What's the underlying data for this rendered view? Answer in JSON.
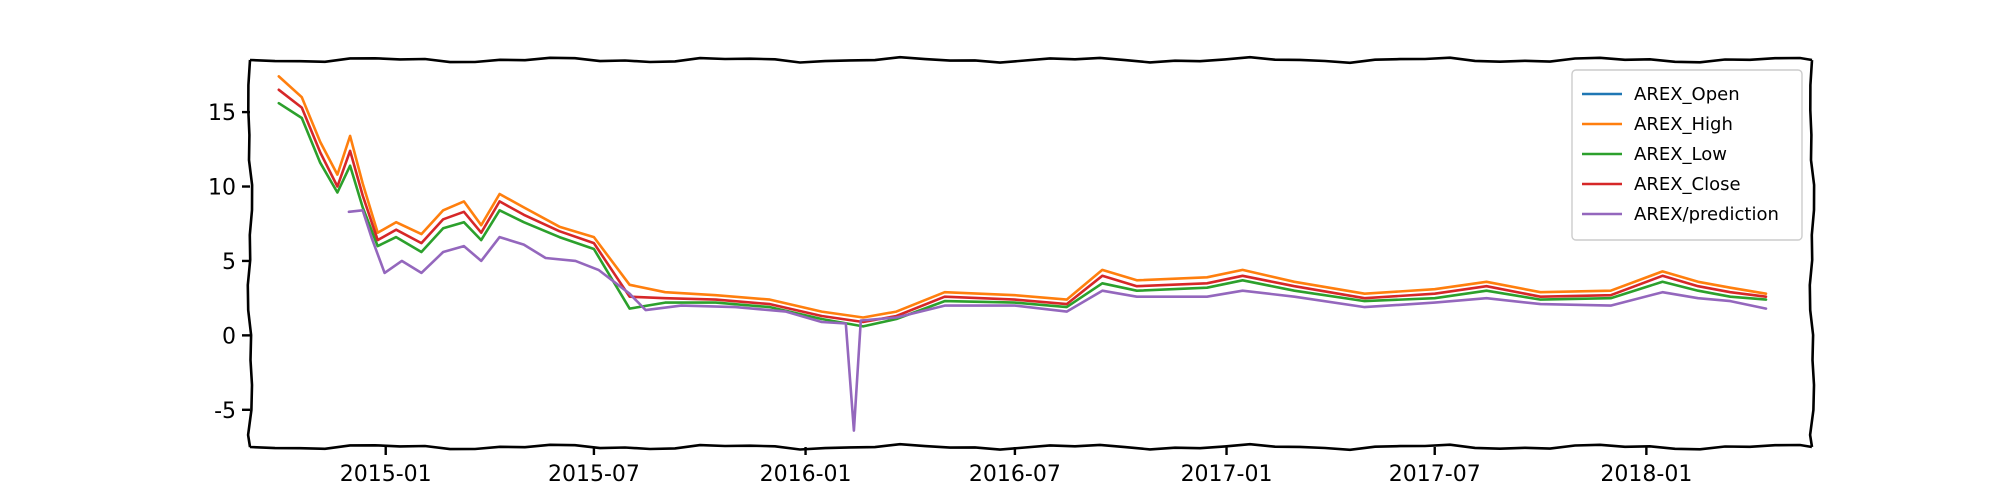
{
  "chart_data": {
    "type": "line",
    "title": "",
    "xlabel": "",
    "ylabel": "",
    "x_range": [
      "2014-09-05",
      "2018-05-25"
    ],
    "ylim": [
      -7.5,
      18.5
    ],
    "yticks": [
      15,
      10,
      5,
      0,
      -5
    ],
    "xticks": [
      "2015-01",
      "2015-07",
      "2016-01",
      "2016-07",
      "2017-01",
      "2017-07",
      "2018-01"
    ],
    "legend": "top-right",
    "grid": false,
    "style": "xkcd",
    "series": [
      {
        "name": "AREX_Open",
        "color": "#1f77b4",
        "points": []
      },
      {
        "name": "AREX_High",
        "color": "#ff7f0e",
        "points": [
          [
            "2014-09-30",
            17.4
          ],
          [
            "2014-10-20",
            16.0
          ],
          [
            "2014-11-05",
            13.0
          ],
          [
            "2014-11-20",
            10.8
          ],
          [
            "2014-12-01",
            13.4
          ],
          [
            "2014-12-12",
            10.2
          ],
          [
            "2014-12-25",
            6.9
          ],
          [
            "2015-01-10",
            7.6
          ],
          [
            "2015-02-01",
            6.8
          ],
          [
            "2015-02-20",
            8.4
          ],
          [
            "2015-03-10",
            9.0
          ],
          [
            "2015-03-25",
            7.4
          ],
          [
            "2015-04-10",
            9.5
          ],
          [
            "2015-05-01",
            8.6
          ],
          [
            "2015-06-01",
            7.3
          ],
          [
            "2015-07-01",
            6.6
          ],
          [
            "2015-08-01",
            3.4
          ],
          [
            "2015-09-01",
            2.9
          ],
          [
            "2015-10-15",
            2.7
          ],
          [
            "2015-12-01",
            2.4
          ],
          [
            "2016-01-15",
            1.6
          ],
          [
            "2016-02-20",
            1.2
          ],
          [
            "2016-03-20",
            1.6
          ],
          [
            "2016-05-01",
            2.9
          ],
          [
            "2016-07-01",
            2.7
          ],
          [
            "2016-08-15",
            2.4
          ],
          [
            "2016-09-15",
            4.4
          ],
          [
            "2016-10-15",
            3.7
          ],
          [
            "2016-12-15",
            3.9
          ],
          [
            "2017-01-15",
            4.4
          ],
          [
            "2017-03-01",
            3.6
          ],
          [
            "2017-05-01",
            2.8
          ],
          [
            "2017-07-01",
            3.1
          ],
          [
            "2017-08-15",
            3.6
          ],
          [
            "2017-10-01",
            2.9
          ],
          [
            "2017-12-01",
            3.0
          ],
          [
            "2018-01-15",
            4.3
          ],
          [
            "2018-02-15",
            3.6
          ],
          [
            "2018-03-15",
            3.2
          ],
          [
            "2018-04-15",
            2.8
          ]
        ]
      },
      {
        "name": "AREX_Low",
        "color": "#2ca02c",
        "points": [
          [
            "2014-09-30",
            15.6
          ],
          [
            "2014-10-20",
            14.6
          ],
          [
            "2014-11-05",
            11.6
          ],
          [
            "2014-11-20",
            9.6
          ],
          [
            "2014-12-01",
            11.4
          ],
          [
            "2014-12-12",
            8.6
          ],
          [
            "2014-12-25",
            6.0
          ],
          [
            "2015-01-10",
            6.6
          ],
          [
            "2015-02-01",
            5.6
          ],
          [
            "2015-02-20",
            7.2
          ],
          [
            "2015-03-10",
            7.6
          ],
          [
            "2015-03-25",
            6.4
          ],
          [
            "2015-04-10",
            8.4
          ],
          [
            "2015-05-01",
            7.6
          ],
          [
            "2015-06-01",
            6.6
          ],
          [
            "2015-07-01",
            5.8
          ],
          [
            "2015-08-01",
            1.8
          ],
          [
            "2015-09-01",
            2.2
          ],
          [
            "2015-10-15",
            2.2
          ],
          [
            "2015-12-01",
            1.9
          ],
          [
            "2016-01-15",
            1.1
          ],
          [
            "2016-02-20",
            0.6
          ],
          [
            "2016-03-20",
            1.1
          ],
          [
            "2016-05-01",
            2.3
          ],
          [
            "2016-07-01",
            2.2
          ],
          [
            "2016-08-15",
            1.9
          ],
          [
            "2016-09-15",
            3.5
          ],
          [
            "2016-10-15",
            3.0
          ],
          [
            "2016-12-15",
            3.2
          ],
          [
            "2017-01-15",
            3.7
          ],
          [
            "2017-03-01",
            3.0
          ],
          [
            "2017-05-01",
            2.3
          ],
          [
            "2017-07-01",
            2.5
          ],
          [
            "2017-08-15",
            3.0
          ],
          [
            "2017-10-01",
            2.4
          ],
          [
            "2017-12-01",
            2.5
          ],
          [
            "2018-01-15",
            3.6
          ],
          [
            "2018-02-15",
            3.0
          ],
          [
            "2018-03-15",
            2.6
          ],
          [
            "2018-04-15",
            2.4
          ]
        ]
      },
      {
        "name": "AREX_Close",
        "color": "#d62728",
        "points": [
          [
            "2014-09-30",
            16.5
          ],
          [
            "2014-10-20",
            15.3
          ],
          [
            "2014-11-05",
            12.3
          ],
          [
            "2014-11-20",
            10.0
          ],
          [
            "2014-12-01",
            12.4
          ],
          [
            "2014-12-12",
            9.4
          ],
          [
            "2014-12-25",
            6.4
          ],
          [
            "2015-01-10",
            7.1
          ],
          [
            "2015-02-01",
            6.2
          ],
          [
            "2015-02-20",
            7.8
          ],
          [
            "2015-03-10",
            8.3
          ],
          [
            "2015-03-25",
            6.9
          ],
          [
            "2015-04-10",
            9.0
          ],
          [
            "2015-05-01",
            8.1
          ],
          [
            "2015-06-01",
            7.0
          ],
          [
            "2015-07-01",
            6.2
          ],
          [
            "2015-08-01",
            2.6
          ],
          [
            "2015-09-01",
            2.5
          ],
          [
            "2015-10-15",
            2.4
          ],
          [
            "2015-12-01",
            2.1
          ],
          [
            "2016-01-15",
            1.3
          ],
          [
            "2016-02-20",
            0.9
          ],
          [
            "2016-03-20",
            1.3
          ],
          [
            "2016-05-01",
            2.6
          ],
          [
            "2016-07-01",
            2.4
          ],
          [
            "2016-08-15",
            2.1
          ],
          [
            "2016-09-15",
            4.0
          ],
          [
            "2016-10-15",
            3.3
          ],
          [
            "2016-12-15",
            3.5
          ],
          [
            "2017-01-15",
            4.0
          ],
          [
            "2017-03-01",
            3.3
          ],
          [
            "2017-05-01",
            2.5
          ],
          [
            "2017-07-01",
            2.8
          ],
          [
            "2017-08-15",
            3.3
          ],
          [
            "2017-10-01",
            2.6
          ],
          [
            "2017-12-01",
            2.7
          ],
          [
            "2018-01-15",
            4.0
          ],
          [
            "2018-02-15",
            3.3
          ],
          [
            "2018-03-15",
            2.9
          ],
          [
            "2018-04-15",
            2.6
          ]
        ]
      },
      {
        "name": "AREX/prediction",
        "color": "#9467bd",
        "points": [
          [
            "2014-11-30",
            8.3
          ],
          [
            "2014-12-12",
            8.4
          ],
          [
            "2014-12-20",
            6.5
          ],
          [
            "2014-12-31",
            4.2
          ],
          [
            "2015-01-15",
            5.0
          ],
          [
            "2015-02-01",
            4.2
          ],
          [
            "2015-02-20",
            5.6
          ],
          [
            "2015-03-10",
            6.0
          ],
          [
            "2015-03-25",
            5.0
          ],
          [
            "2015-04-10",
            6.6
          ],
          [
            "2015-05-01",
            6.1
          ],
          [
            "2015-05-20",
            5.2
          ],
          [
            "2015-06-15",
            5.0
          ],
          [
            "2015-07-05",
            4.4
          ],
          [
            "2015-08-01",
            2.8
          ],
          [
            "2015-08-15",
            1.7
          ],
          [
            "2015-09-15",
            2.0
          ],
          [
            "2015-11-01",
            1.9
          ],
          [
            "2015-12-15",
            1.6
          ],
          [
            "2016-01-15",
            0.9
          ],
          [
            "2016-02-05",
            0.8
          ],
          [
            "2016-02-12",
            -6.4
          ],
          [
            "2016-02-18",
            1.0
          ],
          [
            "2016-03-20",
            1.2
          ],
          [
            "2016-05-01",
            2.0
          ],
          [
            "2016-07-01",
            2.0
          ],
          [
            "2016-08-15",
            1.6
          ],
          [
            "2016-09-15",
            3.0
          ],
          [
            "2016-10-15",
            2.6
          ],
          [
            "2016-12-15",
            2.6
          ],
          [
            "2017-01-15",
            3.0
          ],
          [
            "2017-03-01",
            2.6
          ],
          [
            "2017-05-01",
            1.9
          ],
          [
            "2017-07-01",
            2.2
          ],
          [
            "2017-08-15",
            2.5
          ],
          [
            "2017-10-01",
            2.1
          ],
          [
            "2017-12-01",
            2.0
          ],
          [
            "2018-01-15",
            2.9
          ],
          [
            "2018-02-15",
            2.5
          ],
          [
            "2018-03-15",
            2.3
          ],
          [
            "2018-04-15",
            1.8
          ]
        ]
      }
    ]
  }
}
